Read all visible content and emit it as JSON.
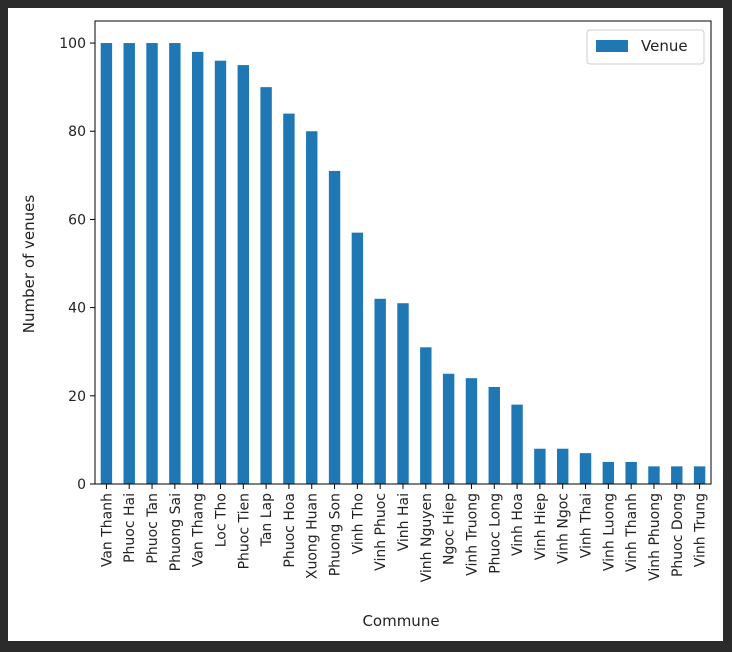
{
  "chart_data": {
    "type": "bar",
    "categories": [
      "Van Thanh",
      "Phuoc Hai",
      "Phuoc Tan",
      "Phuong Sai",
      "Van Thang",
      "Loc Tho",
      "Phuoc Tien",
      "Tan Lap",
      "Phuoc Hoa",
      "Xuong Huan",
      "Phuong Son",
      "Vinh Tho",
      "Vinh Phuoc",
      "Vinh Hai",
      "Vinh Nguyen",
      "Ngoc Hiep",
      "Vinh Truong",
      "Phuoc Long",
      "Vinh Hoa",
      "Vinh Hiep",
      "Vinh Ngoc",
      "Vinh Thai",
      "Vinh Luong",
      "Vinh Thanh",
      "Vinh Phuong",
      "Phuoc Dong",
      "Vinh Trung"
    ],
    "series": [
      {
        "name": "Venue",
        "values": [
          100,
          100,
          100,
          100,
          98,
          96,
          95,
          90,
          84,
          80,
          71,
          57,
          42,
          41,
          31,
          25,
          24,
          22,
          18,
          8,
          8,
          7,
          5,
          5,
          4,
          4,
          4
        ],
        "color": "#1f77b4"
      }
    ],
    "title": "",
    "xlabel": "Commune",
    "ylabel": "Number of venues",
    "ylim": [
      0,
      100
    ],
    "yticks": [
      0,
      20,
      40,
      60,
      80,
      100
    ],
    "grid": false,
    "legend_position": "top-right"
  }
}
